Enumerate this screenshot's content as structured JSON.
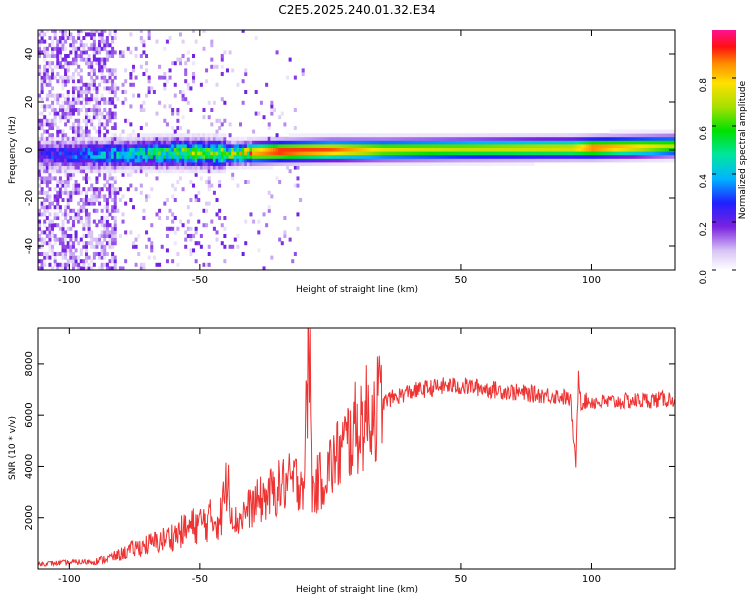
{
  "chart_data": [
    {
      "type": "heatmap",
      "title": "C2E5.2025.240.01.32.E34",
      "xlabel": "Height of straight line (km)",
      "ylabel": "Frequency (Hz)",
      "xlim": [
        -112,
        132
      ],
      "ylim": [
        -50,
        50
      ],
      "xticks": [
        -100,
        -50,
        50,
        100
      ],
      "yticks": [
        -40,
        -20,
        0,
        20,
        40
      ],
      "colorbar": {
        "label": "Normalized spectral amplitude",
        "range": [
          0,
          1
        ],
        "ticks": [
          "0.0",
          "0.2",
          "0.4",
          "0.6",
          "0.8"
        ]
      },
      "signal_ridge": {
        "x": [
          -112,
          -80,
          -60,
          -40,
          -20,
          0,
          20,
          50,
          92,
          100,
          132
        ],
        "freq_hz": [
          -2,
          -1.5,
          -1,
          -1.5,
          -0.5,
          0,
          0.2,
          0.5,
          0.8,
          1,
          1.8
        ],
        "peak_amplitude": [
          0.25,
          0.45,
          0.6,
          0.7,
          0.95,
          0.9,
          0.75,
          0.72,
          0.75,
          0.9,
          0.7
        ]
      }
    },
    {
      "type": "line",
      "xlabel": "Height of straight line (km)",
      "ylabel": "SNR (10 * v/v)",
      "xlim": [
        -112,
        132
      ],
      "ylim": [
        0,
        9400
      ],
      "xticks": [
        -100,
        -50,
        50,
        100
      ],
      "yticks": [
        2000,
        4000,
        6000,
        8000
      ],
      "series": [
        {
          "name": "SNR",
          "color": "#ee3333",
          "x": [
            -112,
            -100,
            -90,
            -82,
            -75,
            -65,
            -58,
            -52,
            -46,
            -42,
            -39,
            -38,
            -36,
            -33,
            -28,
            -22,
            -18,
            -14,
            -10,
            -8,
            -7,
            -6,
            -5,
            -2,
            2,
            6,
            10,
            16,
            22,
            30,
            38,
            45,
            55,
            62,
            70,
            80,
            88,
            92,
            94,
            95,
            96,
            98,
            105,
            115,
            125,
            132
          ],
          "values": [
            200,
            250,
            300,
            500,
            800,
            1100,
            1400,
            1700,
            1900,
            2000,
            3800,
            2300,
            1800,
            2200,
            2600,
            3000,
            3300,
            3400,
            3500,
            9200,
            3000,
            3100,
            3300,
            3700,
            4300,
            4900,
            5500,
            6200,
            6600,
            6900,
            7050,
            7150,
            7100,
            7000,
            6900,
            6800,
            6750,
            6600,
            4000,
            7700,
            6500,
            6550,
            6500,
            6550,
            6600,
            6650
          ]
        }
      ]
    }
  ]
}
